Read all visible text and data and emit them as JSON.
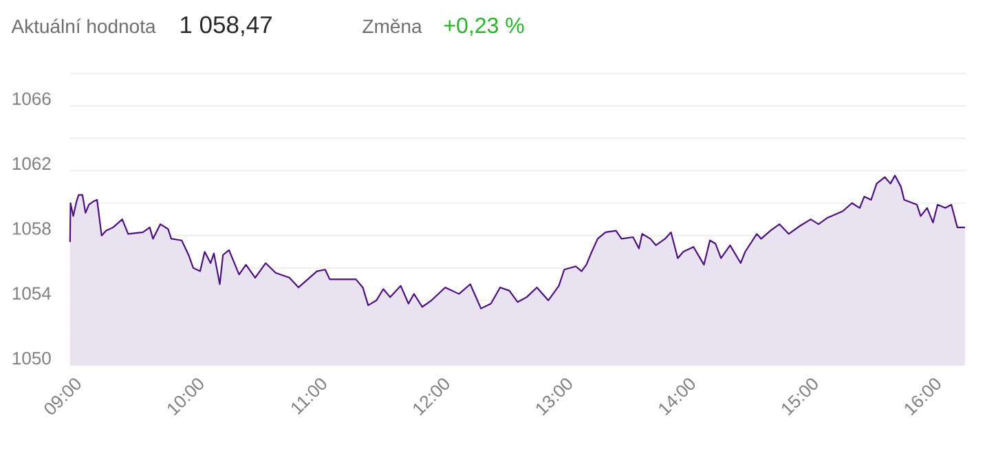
{
  "chart_data": {
    "type": "area",
    "annotations": [
      "Aktuální hodnota",
      "1 058,47",
      "Změna",
      "+0,23 %"
    ],
    "series": [
      {
        "color": "#4b0f7e",
        "x": [
          9.0,
          9.004,
          9.026,
          9.053,
          9.07,
          9.101,
          9.126,
          9.153,
          9.19,
          9.22,
          9.257,
          9.294,
          9.35,
          9.425,
          9.473,
          9.593,
          9.649,
          9.675,
          9.735,
          9.798,
          9.824,
          9.909,
          9.965,
          10.003,
          10.059,
          10.096,
          10.144,
          10.171,
          10.219,
          10.245,
          10.294,
          10.376,
          10.432,
          10.507,
          10.592,
          10.674,
          10.786,
          10.86,
          10.935,
          11.01,
          11.077,
          11.114,
          11.327,
          11.383,
          11.427,
          11.494,
          11.55,
          11.606,
          11.692,
          11.755,
          11.8,
          11.867,
          11.942,
          12.054,
          12.166,
          12.258,
          12.345,
          12.426,
          12.501,
          12.576,
          12.643,
          12.717,
          12.8,
          12.893,
          12.979,
          13.023,
          13.116,
          13.164,
          13.203,
          13.247,
          13.295,
          13.359,
          13.444,
          13.489,
          13.583,
          13.631,
          13.657,
          13.724,
          13.769,
          13.843,
          13.892,
          13.947,
          13.992,
          14.075,
          14.16,
          14.209,
          14.254,
          14.299,
          14.373,
          14.459,
          14.496,
          14.59,
          14.626,
          14.701,
          14.775,
          14.85,
          14.943,
          15.029,
          15.093,
          15.167,
          15.29,
          15.365,
          15.428,
          15.465,
          15.521,
          15.566,
          15.633,
          15.678,
          15.715,
          15.764,
          15.79,
          15.894,
          15.924,
          15.977,
          16.025,
          16.062,
          16.125,
          16.174,
          16.223,
          16.285
        ],
        "values": [
          1057.6,
          1060.0,
          1059.2,
          1060.1,
          1060.5,
          1060.5,
          1059.4,
          1059.9,
          1060.1,
          1060.2,
          1058.0,
          1058.3,
          1058.5,
          1059.0,
          1058.1,
          1058.2,
          1058.5,
          1057.8,
          1058.7,
          1058.4,
          1057.8,
          1057.7,
          1056.8,
          1056.0,
          1055.8,
          1057.0,
          1056.3,
          1056.9,
          1055.0,
          1056.8,
          1057.1,
          1055.6,
          1056.2,
          1055.4,
          1056.3,
          1055.7,
          1055.4,
          1054.8,
          1055.3,
          1055.8,
          1055.9,
          1055.3,
          1055.3,
          1054.8,
          1053.7,
          1054.0,
          1054.7,
          1054.2,
          1054.9,
          1053.8,
          1054.4,
          1053.6,
          1054.0,
          1054.8,
          1054.4,
          1055.0,
          1053.5,
          1053.8,
          1054.8,
          1054.6,
          1053.9,
          1054.2,
          1054.8,
          1054.0,
          1054.9,
          1055.9,
          1056.1,
          1055.8,
          1056.2,
          1057.0,
          1057.8,
          1058.2,
          1058.3,
          1057.8,
          1057.9,
          1057.2,
          1058.1,
          1057.8,
          1057.4,
          1057.8,
          1058.2,
          1056.6,
          1057.0,
          1057.3,
          1056.2,
          1057.7,
          1057.5,
          1056.6,
          1057.4,
          1056.3,
          1057.0,
          1058.1,
          1057.8,
          1058.3,
          1058.7,
          1058.1,
          1058.6,
          1059.0,
          1058.7,
          1059.1,
          1059.5,
          1060.0,
          1059.7,
          1060.4,
          1060.2,
          1061.2,
          1061.6,
          1061.2,
          1061.7,
          1061.0,
          1060.2,
          1059.9,
          1059.2,
          1059.7,
          1058.8,
          1059.9,
          1059.7,
          1059.9,
          1058.5,
          1058.5
        ]
      }
    ],
    "xlim": [
      9,
      16.29
    ],
    "xticks": [
      {
        "value": 9,
        "label": "09:00"
      },
      {
        "value": 10,
        "label": "10:00"
      },
      {
        "value": 11,
        "label": "11:00"
      },
      {
        "value": 12,
        "label": "12:00"
      },
      {
        "value": 13,
        "label": "13:00"
      },
      {
        "value": 14,
        "label": "14:00"
      },
      {
        "value": 15,
        "label": "15:00"
      },
      {
        "value": 16,
        "label": "16:00"
      }
    ],
    "ylim": [
      1050,
      1068
    ],
    "yticks": [
      1050,
      {
        "value": 1052,
        "label": null
      },
      1054,
      {
        "value": 1056,
        "label": null
      },
      1058,
      {
        "value": 1060,
        "label": null
      },
      1062,
      {
        "value": 1064,
        "label": null
      },
      1066,
      {
        "value": 1068,
        "label": null
      }
    ],
    "grid": "y",
    "marker": "none",
    "line_style": "solid"
  }
}
